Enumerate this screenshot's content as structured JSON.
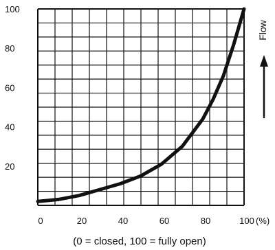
{
  "chart_data": {
    "type": "line",
    "title": "",
    "xlabel": "(0 = closed, 100 = fully open)",
    "x_unit": "(%)",
    "ylabel": "Flow",
    "xlim": [
      0,
      100
    ],
    "ylim": [
      0,
      100
    ],
    "x_ticks": [
      "0",
      "20",
      "40",
      "60",
      "80",
      "100"
    ],
    "y_ticks": [
      "20",
      "40",
      "60",
      "80",
      "100"
    ],
    "grid": true,
    "series": [
      {
        "name": "",
        "x": [
          0,
          5,
          10,
          20,
          30,
          40,
          50,
          60,
          70,
          80,
          85,
          90,
          95,
          100
        ],
        "y": [
          2,
          2.5,
          3,
          5,
          8,
          11,
          15,
          21,
          30,
          44,
          54,
          66,
          82,
          100
        ]
      }
    ]
  },
  "colors": {
    "line": "#111111",
    "grid": "#111111"
  }
}
